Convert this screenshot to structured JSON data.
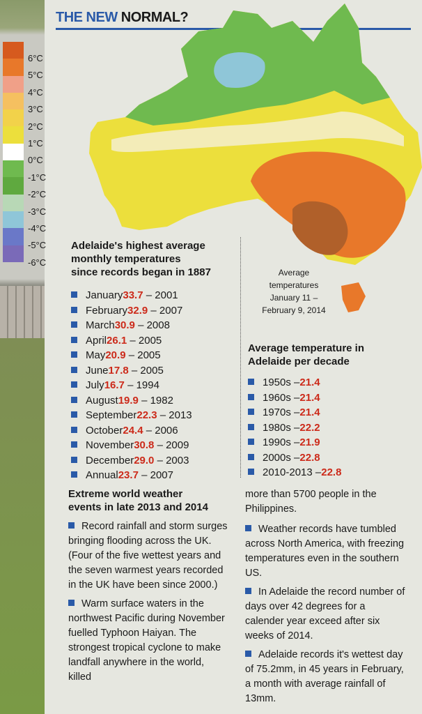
{
  "header": {
    "title_blue": "THE NEW",
    "title_dark": "NORMAL?"
  },
  "legend": {
    "labels": [
      "6°C",
      "5°C",
      "4°C",
      "3°C",
      "2°C",
      "1°C",
      "0°C",
      "-1°C",
      "-2°C",
      "-3°C",
      "-4°C",
      "-5°C",
      "-6°C"
    ],
    "colors": [
      "#d65a1e",
      "#e8782a",
      "#f0a088",
      "#f5c060",
      "#f2d24a",
      "#ecdf3c",
      "#ffffff",
      "#6fba4f",
      "#5fa93f",
      "#b8d8b6",
      "#8fc6d8",
      "#6a78c8",
      "#7a6ab8"
    ]
  },
  "map": {
    "caption": [
      "Average",
      "temperatures",
      "January 11 –",
      "February 9, 2014"
    ]
  },
  "adelaide_monthly": {
    "heading": [
      "Adelaide's highest average",
      "monthly temperatures",
      "since records began in 1887"
    ],
    "items": [
      {
        "label": "January",
        "value": "33.7",
        "year": "– 2001"
      },
      {
        "label": "February",
        "value": "32.9",
        "year": "– 2007"
      },
      {
        "label": "March",
        "value": "30.9",
        "year": "– 2008"
      },
      {
        "label": "April",
        "value": "26.1",
        "year": "– 2005"
      },
      {
        "label": "May",
        "value": "20.9",
        "year": "– 2005"
      },
      {
        "label": "June",
        "value": "17.8",
        "year": "– 2005"
      },
      {
        "label": "July",
        "value": "16.7",
        "year": "– 1994"
      },
      {
        "label": "August",
        "value": "19.9",
        "year": "– 1982"
      },
      {
        "label": "September",
        "value": "22.3",
        "year": "– 2013"
      },
      {
        "label": "October",
        "value": "24.4",
        "year": "– 2006"
      },
      {
        "label": "November",
        "value": "30.8",
        "year": "– 2009"
      },
      {
        "label": "December",
        "value": "29.0",
        "year": "– 2003"
      },
      {
        "label": "Annual",
        "value": "23.7",
        "year": "– 2007"
      }
    ]
  },
  "decade": {
    "heading": [
      "Average temperature in",
      "Adelaide per decade"
    ],
    "items": [
      {
        "label": "1950s –",
        "value": "21.4"
      },
      {
        "label": "1960s –",
        "value": "21.4"
      },
      {
        "label": "1970s –",
        "value": "21.4"
      },
      {
        "label": "1980s –",
        "value": "22.2"
      },
      {
        "label": "1990s –",
        "value": "21.9"
      },
      {
        "label": "2000s –",
        "value": "22.8"
      },
      {
        "label": "2010-2013 –",
        "value": "22.8"
      }
    ]
  },
  "extreme": {
    "heading": [
      "Extreme world weather",
      "events in late 2013 and 2014"
    ],
    "left_paragraphs": [
      "Record rainfall and storm surges bringing flooding across the UK. (Four of the five wettest years and the seven warmest years recorded in the UK have been since 2000.)",
      "Warm surface waters in the northwest Pacific during November fuelled Typhoon Haiyan. The strongest tropical cyclone to make landfall anywhere in the world, killed"
    ],
    "right_continuation": "more than 5700 people in the Philippines.",
    "right_paragraphs": [
      "Weather records have tumbled across North America, with freezing temperatures even in the southern US.",
      "In Adelaide the record number of days over 42 degrees for a calender year exceed after six weeks of 2014.",
      "Adelaide records it's wettest day of 75.2mm, in 45 years in February, a month with average rainfall of 13mm."
    ]
  }
}
